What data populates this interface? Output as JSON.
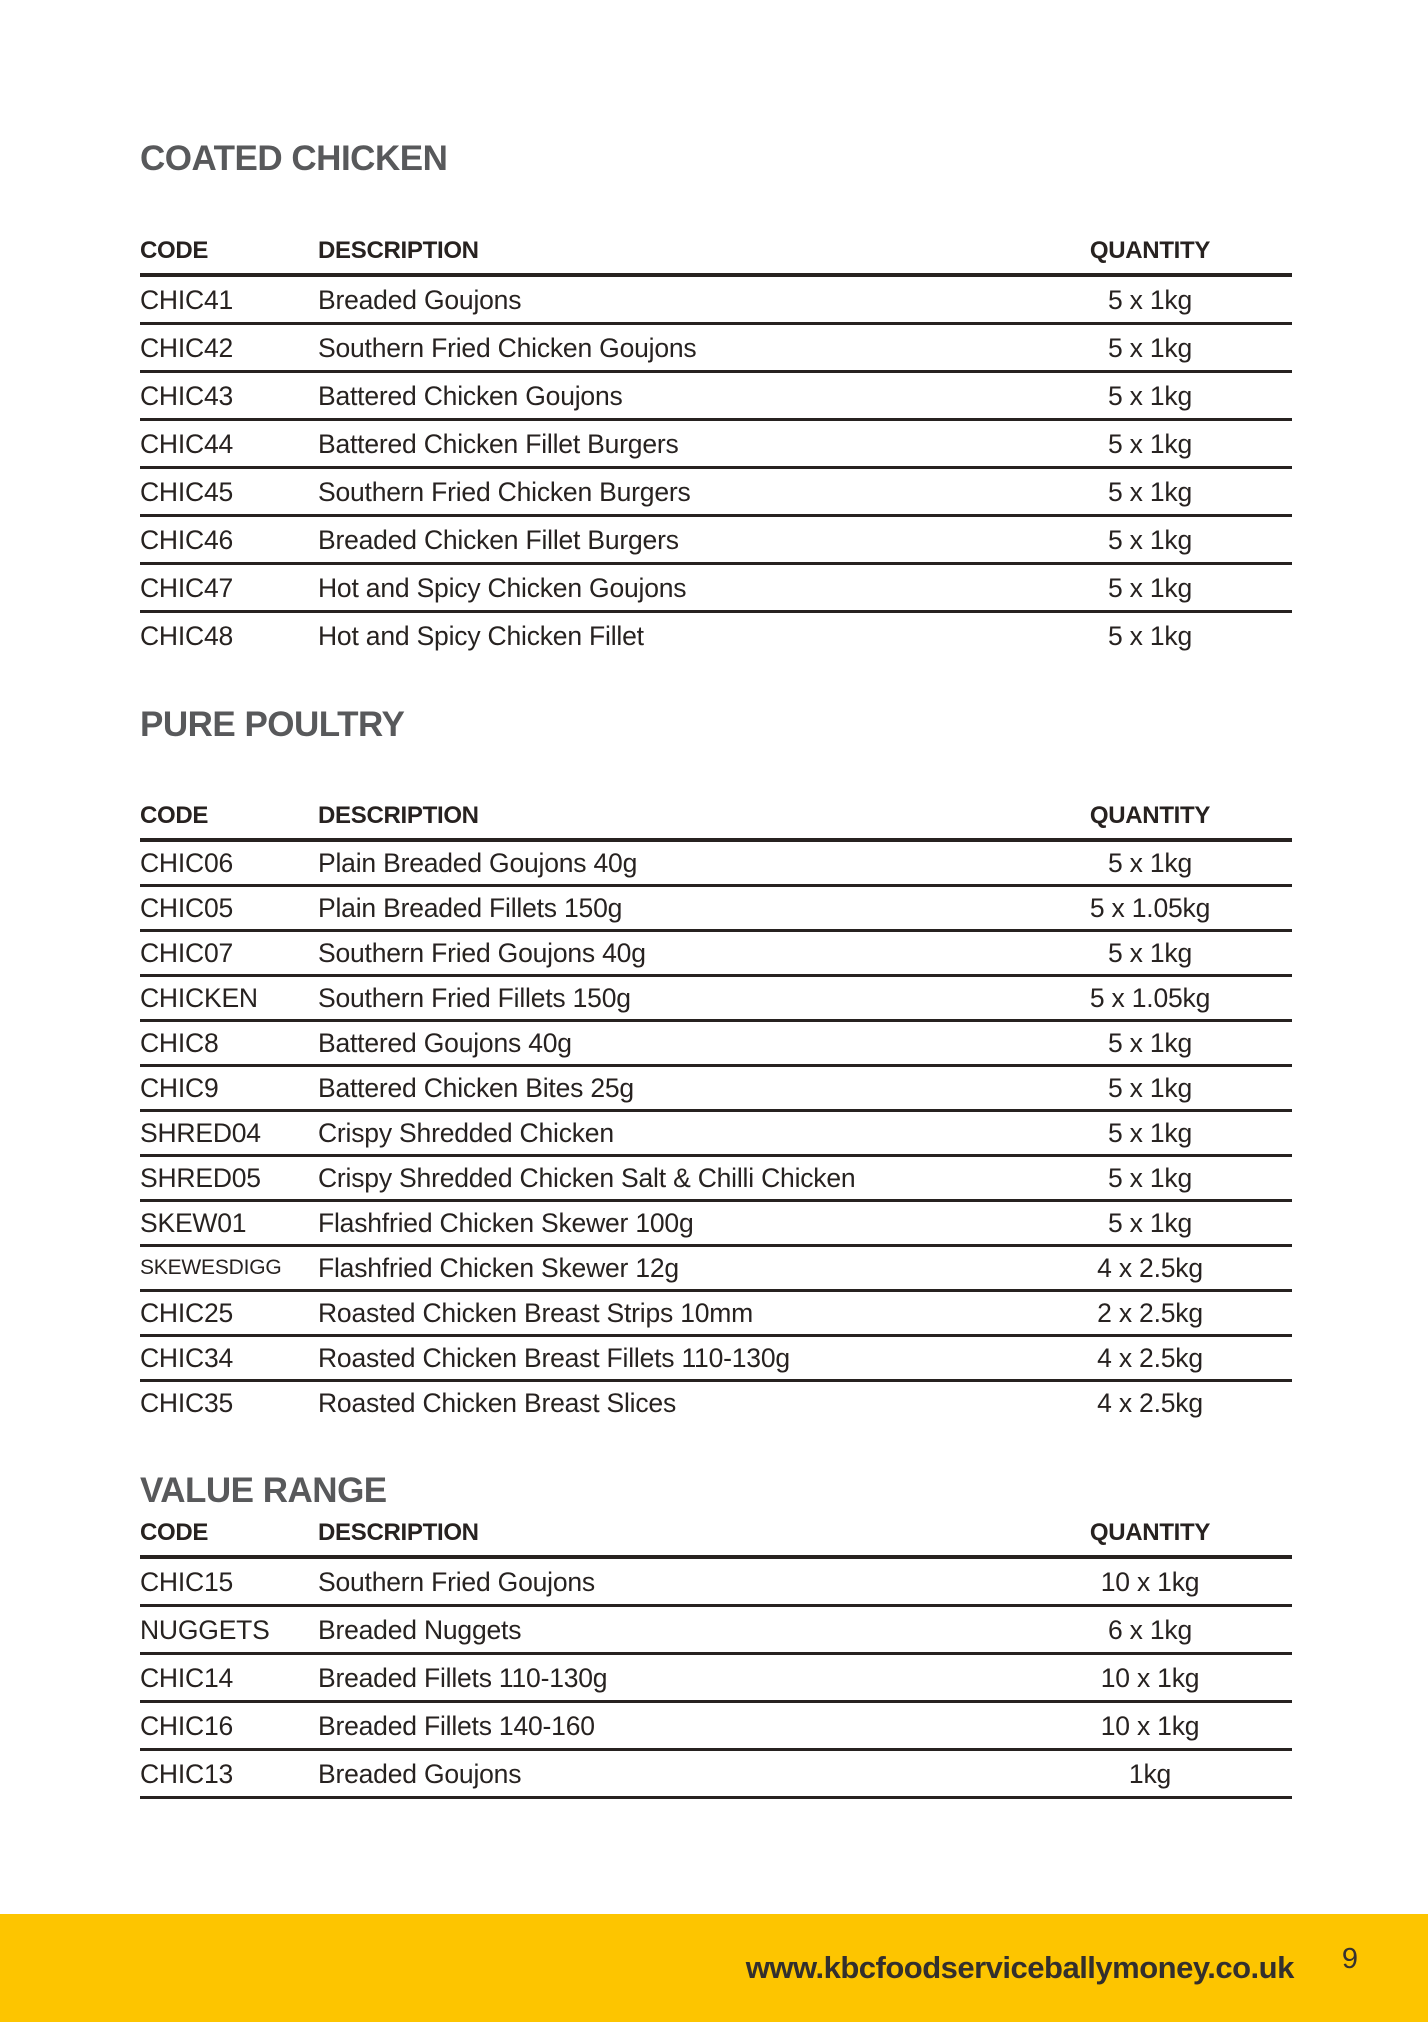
{
  "sections": [
    {
      "title": "COATED CHICKEN",
      "columns": {
        "code": "CODE",
        "description": "DESCRIPTION",
        "quantity": "QUANTITY"
      },
      "rows": [
        {
          "code": "CHIC41",
          "description": "Breaded Goujons",
          "quantity": "5 x 1kg"
        },
        {
          "code": "CHIC42",
          "description": "Southern Fried Chicken Goujons",
          "quantity": "5 x 1kg"
        },
        {
          "code": "CHIC43",
          "description": "Battered Chicken Goujons",
          "quantity": "5 x 1kg"
        },
        {
          "code": "CHIC44",
          "description": "Battered Chicken Fillet Burgers",
          "quantity": "5 x 1kg"
        },
        {
          "code": "CHIC45",
          "description": "Southern Fried Chicken Burgers",
          "quantity": "5 x 1kg"
        },
        {
          "code": "CHIC46",
          "description": "Breaded Chicken Fillet Burgers",
          "quantity": "5 x 1kg"
        },
        {
          "code": "CHIC47",
          "description": "Hot and Spicy Chicken Goujons",
          "quantity": "5 x 1kg"
        },
        {
          "code": "CHIC48",
          "description": "Hot and Spicy Chicken Fillet",
          "quantity": "5 x 1kg"
        }
      ]
    },
    {
      "title": "PURE POULTRY",
      "columns": {
        "code": "CODE",
        "description": "DESCRIPTION",
        "quantity": "QUANTITY"
      },
      "rows": [
        {
          "code": "CHIC06",
          "description": "Plain Breaded Goujons 40g",
          "quantity": "5 x 1kg"
        },
        {
          "code": "CHIC05",
          "description": "Plain Breaded Fillets 150g",
          "quantity": "5 x 1.05kg"
        },
        {
          "code": "CHIC07",
          "description": "Southern Fried Goujons 40g",
          "quantity": "5 x 1kg"
        },
        {
          "code": "CHICKEN",
          "description": "Southern Fried Fillets 150g",
          "quantity": "5 x 1.05kg"
        },
        {
          "code": "CHIC8",
          "description": "Battered Goujons 40g",
          "quantity": "5 x 1kg"
        },
        {
          "code": "CHIC9",
          "description": "Battered Chicken Bites 25g",
          "quantity": "5 x 1kg"
        },
        {
          "code": "SHRED04",
          "description": "Crispy Shredded Chicken",
          "quantity": "5 x 1kg"
        },
        {
          "code": "SHRED05",
          "description": "Crispy Shredded Chicken Salt & Chilli Chicken",
          "quantity": "5 x 1kg"
        },
        {
          "code": "SKEW01",
          "description": "Flashfried Chicken Skewer 100g",
          "quantity": "5 x 1kg"
        },
        {
          "code": "SKEWESDIGG",
          "description": "Flashfried Chicken Skewer 12g",
          "quantity": "4 x 2.5kg"
        },
        {
          "code": "CHIC25",
          "description": "Roasted Chicken Breast Strips 10mm",
          "quantity": "2 x 2.5kg"
        },
        {
          "code": "CHIC34",
          "description": "Roasted Chicken Breast Fillets 110-130g",
          "quantity": "4 x 2.5kg"
        },
        {
          "code": "CHIC35",
          "description": "Roasted Chicken Breast Slices",
          "quantity": "4 x 2.5kg"
        }
      ]
    },
    {
      "title": "VALUE RANGE",
      "columns": {
        "code": "CODE",
        "description": "DESCRIPTION",
        "quantity": "QUANTITY"
      },
      "rows": [
        {
          "code": "CHIC15",
          "description": "Southern Fried Goujons",
          "quantity": "10 x 1kg"
        },
        {
          "code": "NUGGETS",
          "description": "Breaded Nuggets",
          "quantity": "6 x 1kg"
        },
        {
          "code": "CHIC14",
          "description": "Breaded Fillets 110-130g",
          "quantity": "10 x 1kg"
        },
        {
          "code": "CHIC16",
          "description": "Breaded Fillets 140-160",
          "quantity": "10 x 1kg"
        },
        {
          "code": "CHIC13",
          "description": "Breaded Goujons",
          "quantity": "1kg"
        }
      ]
    }
  ],
  "footer": {
    "url": "www.kbcfoodserviceballymoney.co.uk",
    "page_number": "9"
  },
  "colors": {
    "accent_yellow": "#FDC500",
    "heading_gray": "#58595B",
    "text_dark": "#272220"
  }
}
